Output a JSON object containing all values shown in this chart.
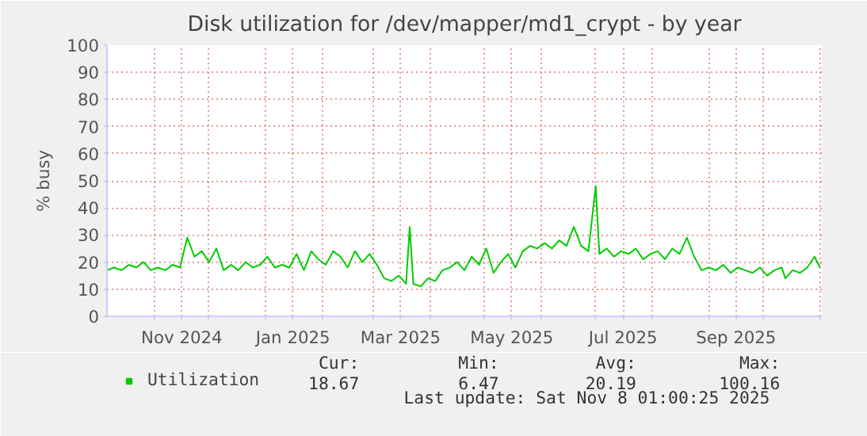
{
  "chart_data": {
    "type": "line",
    "title": "Disk utilization for /dev/mapper/md1_crypt - by year",
    "ylabel": "% busy",
    "x": [
      "2024-10-06",
      "2024-10-10",
      "2024-10-14",
      "2024-10-18",
      "2024-10-22",
      "2024-10-26",
      "2024-10-30",
      "2024-11-03",
      "2024-11-07",
      "2024-11-11",
      "2024-11-15",
      "2024-11-19",
      "2024-11-23",
      "2024-11-27",
      "2024-12-01",
      "2024-12-05",
      "2024-12-09",
      "2024-12-13",
      "2024-12-17",
      "2024-12-21",
      "2024-12-25",
      "2024-12-29",
      "2025-01-02",
      "2025-01-06",
      "2025-01-10",
      "2025-01-14",
      "2025-01-18",
      "2025-01-22",
      "2025-01-26",
      "2025-01-30",
      "2025-02-03",
      "2025-02-07",
      "2025-02-11",
      "2025-02-15",
      "2025-02-19",
      "2025-02-23",
      "2025-02-27",
      "2025-03-03",
      "2025-03-07",
      "2025-03-11",
      "2025-03-15",
      "2025-03-19",
      "2025-03-21",
      "2025-03-23",
      "2025-03-27",
      "2025-03-31",
      "2025-04-04",
      "2025-04-08",
      "2025-04-12",
      "2025-04-16",
      "2025-04-20",
      "2025-04-24",
      "2025-04-28",
      "2025-05-02",
      "2025-05-06",
      "2025-05-10",
      "2025-05-14",
      "2025-05-18",
      "2025-05-22",
      "2025-05-26",
      "2025-05-30",
      "2025-06-03",
      "2025-06-07",
      "2025-06-11",
      "2025-06-15",
      "2025-06-19",
      "2025-06-23",
      "2025-06-27",
      "2025-07-01",
      "2025-07-03",
      "2025-07-07",
      "2025-07-11",
      "2025-07-15",
      "2025-07-19",
      "2025-07-23",
      "2025-07-27",
      "2025-07-31",
      "2025-08-04",
      "2025-08-08",
      "2025-08-12",
      "2025-08-16",
      "2025-08-20",
      "2025-08-24",
      "2025-08-28",
      "2025-09-01",
      "2025-09-05",
      "2025-09-09",
      "2025-09-13",
      "2025-09-17",
      "2025-09-21",
      "2025-09-25",
      "2025-09-29",
      "2025-10-03",
      "2025-10-07",
      "2025-10-11",
      "2025-10-13",
      "2025-10-17",
      "2025-10-21",
      "2025-10-25",
      "2025-10-29",
      "2025-11-01"
    ],
    "series": [
      {
        "name": "Utilization",
        "color": "#00cc00",
        "values": [
          17,
          18,
          17,
          19,
          18,
          20,
          17,
          18,
          17,
          19,
          18,
          29,
          22,
          24,
          20,
          25,
          17,
          19,
          17,
          20,
          18,
          19,
          22,
          18,
          19,
          18,
          23,
          17,
          24,
          21,
          19,
          24,
          22,
          18,
          24,
          20,
          23,
          19,
          14,
          13,
          15,
          12,
          33,
          12,
          11,
          14,
          13,
          17,
          18,
          20,
          17,
          22,
          19,
          25,
          16,
          20,
          23,
          18,
          24,
          26,
          25,
          27,
          25,
          28,
          26,
          33,
          26,
          24,
          48,
          23,
          25,
          22,
          24,
          23,
          25,
          21,
          23,
          24,
          21,
          25,
          23,
          29,
          22,
          17,
          18,
          17,
          19,
          16,
          18,
          17,
          16,
          18,
          15,
          17,
          18,
          14,
          17,
          16,
          18,
          22,
          18
        ]
      }
    ],
    "xlim": [
      "2024-10-06",
      "2025-11-02"
    ],
    "xticks": [
      {
        "value": "2024-11-01",
        "label": null
      },
      {
        "value": "2024-11-16",
        "label": "Nov 2024"
      },
      {
        "value": "2024-12-01",
        "label": null
      },
      {
        "value": "2025-01-01",
        "label": null
      },
      {
        "value": "2025-01-16",
        "label": "Jan 2025"
      },
      {
        "value": "2025-02-01",
        "label": null
      },
      {
        "value": "2025-03-01",
        "label": null
      },
      {
        "value": "2025-03-16",
        "label": "Mar 2025"
      },
      {
        "value": "2025-04-01",
        "label": null
      },
      {
        "value": "2025-05-01",
        "label": null
      },
      {
        "value": "2025-05-16",
        "label": "May 2025"
      },
      {
        "value": "2025-06-01",
        "label": null
      },
      {
        "value": "2025-07-01",
        "label": null
      },
      {
        "value": "2025-07-16",
        "label": "Jul 2025"
      },
      {
        "value": "2025-08-01",
        "label": null
      },
      {
        "value": "2025-09-01",
        "label": null
      },
      {
        "value": "2025-09-16",
        "label": "Sep 2025"
      },
      {
        "value": "2025-10-01",
        "label": null
      },
      {
        "value": "2025-11-01",
        "label": null
      }
    ],
    "ylim": [
      0,
      100
    ],
    "yticks": [
      0,
      10,
      20,
      30,
      40,
      50,
      60,
      70,
      80,
      90,
      100
    ],
    "grid": true,
    "legend": "bottom left",
    "annotations": [
      "Cur:",
      "Min:",
      "Avg:",
      "Max:",
      "18.67",
      "6.47",
      "20.19",
      "100.16",
      "Last update: Sat Nov  8 01:00:25 2025"
    ]
  }
}
